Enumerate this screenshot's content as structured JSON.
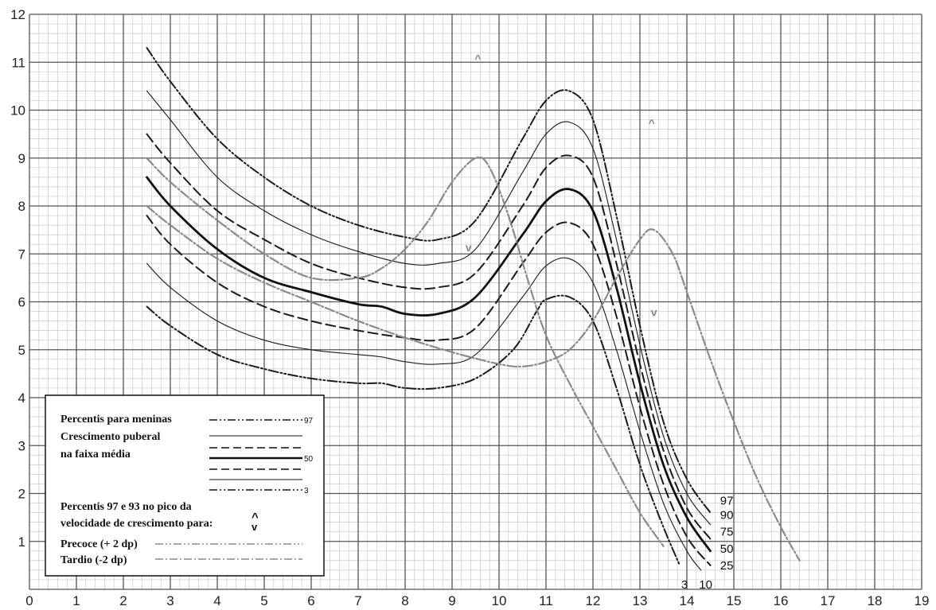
{
  "chart_data": {
    "type": "line",
    "title": "",
    "xlabel": "",
    "ylabel": "",
    "xlim": [
      0,
      19
    ],
    "ylim": [
      0,
      12
    ],
    "grid": true,
    "x_ticks": [
      0,
      1,
      2,
      3,
      4,
      5,
      6,
      7,
      8,
      9,
      10,
      11,
      12,
      13,
      14,
      15,
      16,
      17,
      18,
      19
    ],
    "y_ticks": [
      1,
      2,
      3,
      4,
      5,
      6,
      7,
      8,
      9,
      10,
      11,
      12
    ],
    "series": [
      {
        "name": "97",
        "style": "dashdot",
        "color": "#1a1a1a",
        "x": [
          2.5,
          3,
          4,
          5,
          6,
          7,
          8,
          8.7,
          9.5,
          10.5,
          11,
          11.5,
          12,
          12.5,
          13,
          13.5,
          14,
          14.5
        ],
        "y": [
          11.3,
          10.6,
          9.4,
          8.6,
          8.0,
          7.6,
          7.35,
          7.3,
          7.7,
          9.4,
          10.2,
          10.4,
          9.8,
          7.8,
          5.5,
          3.5,
          2.3,
          1.6
        ]
      },
      {
        "name": "90",
        "style": "solid-thin",
        "color": "#1a1a1a",
        "x": [
          2.5,
          3,
          4,
          5,
          6,
          7,
          8,
          8.7,
          9.5,
          10.5,
          11,
          11.5,
          12,
          12.5,
          13,
          13.5,
          14,
          14.5
        ],
        "y": [
          10.4,
          9.8,
          8.6,
          7.9,
          7.4,
          7.05,
          6.8,
          6.8,
          7.1,
          8.7,
          9.5,
          9.75,
          9.2,
          7.3,
          5.1,
          3.2,
          2.0,
          1.35
        ]
      },
      {
        "name": "75",
        "style": "dashed",
        "color": "#1a1a1a",
        "x": [
          2.5,
          3,
          4,
          5,
          6,
          7,
          8,
          8.7,
          9.5,
          10.5,
          11,
          11.5,
          12,
          12.5,
          13,
          13.5,
          14,
          14.5
        ],
        "y": [
          9.5,
          8.9,
          7.9,
          7.3,
          6.8,
          6.5,
          6.3,
          6.3,
          6.6,
          8.0,
          8.8,
          9.05,
          8.6,
          6.8,
          4.7,
          2.9,
          1.7,
          1.05
        ]
      },
      {
        "name": "50",
        "style": "solid-thick",
        "color": "#111111",
        "x": [
          2.5,
          3,
          4,
          5,
          6,
          7,
          7.5,
          8,
          8.7,
          9.5,
          10.5,
          11,
          11.5,
          12,
          12.5,
          13,
          13.5,
          14,
          14.5
        ],
        "y": [
          8.6,
          8.0,
          7.1,
          6.5,
          6.2,
          5.95,
          5.9,
          5.75,
          5.75,
          6.1,
          7.4,
          8.1,
          8.35,
          7.9,
          6.3,
          4.3,
          2.6,
          1.5,
          0.8
        ]
      },
      {
        "name": "25",
        "style": "dashed",
        "color": "#1a1a1a",
        "x": [
          2.5,
          3,
          4,
          5,
          6,
          7,
          8,
          8.7,
          9.5,
          10.5,
          11,
          11.5,
          12,
          12.5,
          13,
          13.5,
          14,
          14.5
        ],
        "y": [
          7.8,
          7.2,
          6.4,
          5.9,
          5.6,
          5.4,
          5.25,
          5.2,
          5.45,
          6.8,
          7.45,
          7.65,
          7.2,
          5.7,
          3.8,
          2.2,
          1.1,
          0.5
        ]
      },
      {
        "name": "10",
        "style": "solid-thin",
        "color": "#1a1a1a",
        "x": [
          2.5,
          3,
          4,
          5,
          6,
          7,
          7.5,
          8,
          8.7,
          9.5,
          10.5,
          11,
          11.5,
          12,
          12.5,
          13,
          13.5,
          14,
          14.3
        ],
        "y": [
          6.8,
          6.3,
          5.6,
          5.2,
          5.0,
          4.9,
          4.85,
          4.75,
          4.7,
          4.9,
          6.1,
          6.75,
          6.9,
          6.4,
          5.0,
          3.3,
          1.8,
          0.8,
          0.4
        ]
      },
      {
        "name": "3",
        "style": "dashdot",
        "color": "#1a1a1a",
        "x": [
          2.5,
          3,
          4,
          5,
          6,
          7,
          7.5,
          8,
          8.7,
          9.5,
          10.3,
          10.8,
          11,
          11.5,
          12,
          12.5,
          13,
          13.5,
          13.85
        ],
        "y": [
          5.9,
          5.5,
          4.9,
          4.6,
          4.4,
          4.3,
          4.3,
          4.2,
          4.2,
          4.4,
          5.0,
          5.8,
          6.05,
          6.1,
          5.6,
          4.2,
          2.6,
          1.3,
          0.5
        ]
      },
      {
        "name": "Precoce (+ 2 dp)",
        "style": "dashdot-gray",
        "color": "#8a8a8a",
        "x": [
          2.5,
          3,
          4,
          5,
          6,
          7,
          7.5,
          8,
          8.5,
          9,
          9.5,
          9.8,
          10.2,
          10.6,
          11,
          11.5,
          12,
          12.5,
          13,
          13.5
        ],
        "y": [
          9.0,
          8.5,
          7.7,
          7.0,
          6.5,
          6.5,
          6.7,
          7.1,
          7.7,
          8.5,
          9.0,
          8.8,
          7.8,
          6.5,
          5.3,
          4.3,
          3.4,
          2.5,
          1.6,
          0.9
        ]
      },
      {
        "name": "Tardio (-2 dp)",
        "style": "dashdot-gray",
        "color": "#8a8a8a",
        "x": [
          2.5,
          3,
          4,
          5,
          6,
          7,
          8,
          9,
          10,
          10.5,
          11,
          11.5,
          12,
          12.5,
          13,
          13.3,
          13.7,
          14,
          14.5,
          15,
          15.5,
          16,
          16.4
        ],
        "y": [
          8.0,
          7.6,
          6.9,
          6.4,
          6.0,
          5.6,
          5.25,
          4.95,
          4.7,
          4.65,
          4.75,
          5.0,
          5.6,
          6.5,
          7.3,
          7.5,
          7.0,
          6.2,
          4.8,
          3.5,
          2.3,
          1.3,
          0.6
        ]
      }
    ],
    "curve_end_labels": [
      {
        "text": "97",
        "x": 14.85,
        "y": 1.85
      },
      {
        "text": "90",
        "x": 14.85,
        "y": 1.55
      },
      {
        "text": "75",
        "x": 14.85,
        "y": 1.2
      },
      {
        "text": "50",
        "x": 14.85,
        "y": 0.85
      },
      {
        "text": "25",
        "x": 14.85,
        "y": 0.5
      },
      {
        "text": "3",
        "x": 13.95,
        "y": 0.1
      },
      {
        "text": "10",
        "x": 14.4,
        "y": 0.1
      }
    ],
    "peak_markers": [
      {
        "text": "^",
        "x": 9.55,
        "y": 11.0
      },
      {
        "text": "v",
        "x": 9.35,
        "y": 7.05
      },
      {
        "text": "^",
        "x": 13.25,
        "y": 9.65
      },
      {
        "text": "v",
        "x": 13.3,
        "y": 5.7
      }
    ]
  },
  "legend": {
    "line1": "Percentis para meninas",
    "line2": "Crescimento puberal",
    "line3": "na faixa média",
    "label_97": "97",
    "label_50": "50",
    "label_3": "3",
    "peak_line1": "Percentis 97 e 93 no pico da",
    "peak_line2": "velocidade de crescimento para:",
    "peak_symbol_up": "^",
    "peak_symbol_down": "v",
    "precoce": "Precoce (+ 2 dp)",
    "tardio": "Tardio    (-2 dp)"
  }
}
